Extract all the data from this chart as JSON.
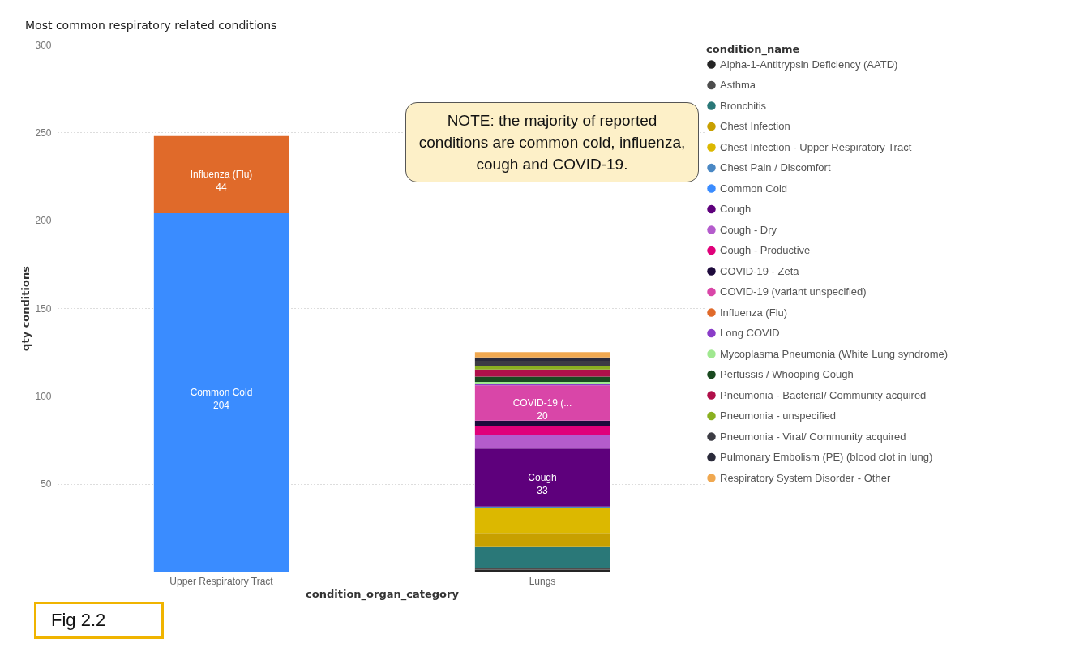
{
  "chart_data": {
    "type": "bar",
    "title": "Most common respiratory related conditions",
    "xlabel": "condition_organ_category",
    "ylabel": "qty conditions",
    "legend_title": "condition_name",
    "categories": [
      "Upper Respiratory Tract",
      "Lungs"
    ],
    "stacked": true,
    "ylim": [
      0,
      300
    ],
    "yticks": [
      50,
      100,
      150,
      200,
      250,
      300
    ],
    "grid": "y",
    "legend": "right",
    "series": [
      {
        "name": "Alpha-1-Antitrypsin Deficiency (AATD)",
        "color": "#252525",
        "values": [
          null,
          1
        ]
      },
      {
        "name": "Asthma",
        "color": "#4d4d4d",
        "values": [
          null,
          1
        ]
      },
      {
        "name": "Bronchitis",
        "color": "#2a7878",
        "values": [
          null,
          12
        ]
      },
      {
        "name": "Chest Infection",
        "color": "#c8a000",
        "values": [
          null,
          8
        ]
      },
      {
        "name": "Chest Infection - Upper Respiratory Tract",
        "color": "#dcb800",
        "values": [
          null,
          14
        ]
      },
      {
        "name": "Chest Pain / Discomfort",
        "color": "#4a88c4",
        "values": [
          null,
          1
        ]
      },
      {
        "name": "Common Cold",
        "color": "#3a8cff",
        "values": [
          204,
          null
        ],
        "value_labels": [
          "Common Cold\n204",
          null
        ]
      },
      {
        "name": "Cough",
        "color": "#5e007c",
        "values": [
          null,
          33
        ],
        "value_labels": [
          null,
          "Cough\n33"
        ]
      },
      {
        "name": "Cough - Dry",
        "color": "#b45ccc",
        "values": [
          null,
          8
        ]
      },
      {
        "name": "Cough - Productive",
        "color": "#e0007a",
        "values": [
          null,
          5
        ]
      },
      {
        "name": "COVID-19 - Zeta",
        "color": "#1e0a3c",
        "values": [
          null,
          3
        ]
      },
      {
        "name": "COVID-19 (variant unspecified)",
        "color": "#d946a8",
        "values": [
          null,
          20
        ],
        "value_labels": [
          null,
          "COVID-19 (...\n20"
        ]
      },
      {
        "name": "Influenza (Flu)",
        "color": "#e06a2a",
        "values": [
          44,
          null
        ],
        "value_labels": [
          "Influenza (Flu)\n44",
          null
        ]
      },
      {
        "name": "Long COVID",
        "color": "#8a3cc8",
        "values": [
          null,
          1
        ]
      },
      {
        "name": "Mycoplasma Pneumonia (White Lung syndrome)",
        "color": "#a0e890",
        "values": [
          null,
          1
        ]
      },
      {
        "name": "Pertussis / Whooping Cough",
        "color": "#1a4a20",
        "values": [
          null,
          3
        ]
      },
      {
        "name": "Pneumonia - Bacterial/ Community acquired",
        "color": "#b0104a",
        "values": [
          null,
          4
        ]
      },
      {
        "name": "Pneumonia - unspecified",
        "color": "#8ab020",
        "values": [
          null,
          2
        ]
      },
      {
        "name": "Pneumonia - Viral/ Community acquired",
        "color": "#3c3c44",
        "values": [
          null,
          3
        ]
      },
      {
        "name": "Pulmonary Embolism (PE) (blood clot in lung)",
        "color": "#2a2a3a",
        "values": [
          null,
          2
        ]
      },
      {
        "name": "Respiratory System Disorder - Other",
        "color": "#f0a850",
        "values": [
          null,
          3
        ]
      }
    ],
    "annotations": [
      "NOTE: the majority of reported conditions are common cold, influenza, cough and COVID-19.",
      "Fig 2.2"
    ]
  }
}
